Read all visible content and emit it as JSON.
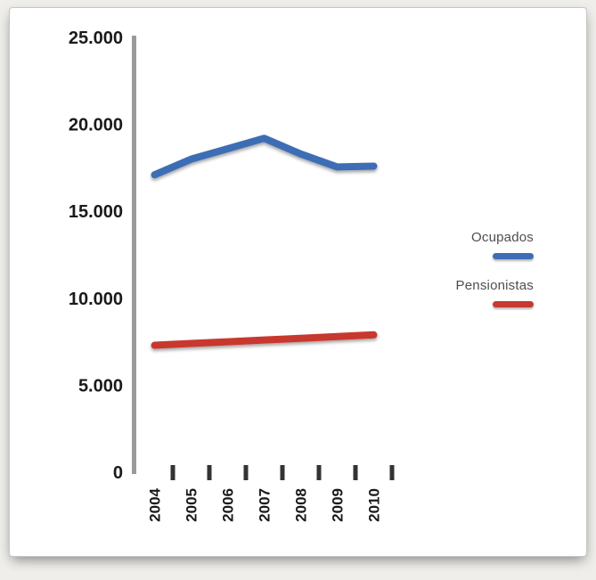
{
  "chart_data": {
    "type": "line",
    "categories": [
      "2004",
      "2005",
      "2006",
      "2007",
      "2008",
      "2009",
      "2010"
    ],
    "series": [
      {
        "name": "Ocupados",
        "color": "#3E6DB5",
        "values": [
          17100,
          18000,
          18600,
          19200,
          18300,
          17550,
          17600
        ]
      },
      {
        "name": "Pensionistas",
        "color": "#C8392F",
        "values": [
          7300,
          7400,
          7500,
          7600,
          7700,
          7800,
          7900
        ]
      }
    ],
    "title": "",
    "xlabel": "",
    "ylabel": "",
    "ylim": [
      0,
      25000
    ],
    "ytick_step": 5000,
    "ytick_labels": [
      "0",
      "5.000",
      "10.000",
      "15.000",
      "20.000",
      "25.000"
    ],
    "grid": true,
    "legend_position": "right",
    "colors": {
      "gridline": "#9a9a9a",
      "axis": "#9a9a9a",
      "tick_mark": "#333333",
      "tick_label": "#1a1a1a"
    }
  }
}
